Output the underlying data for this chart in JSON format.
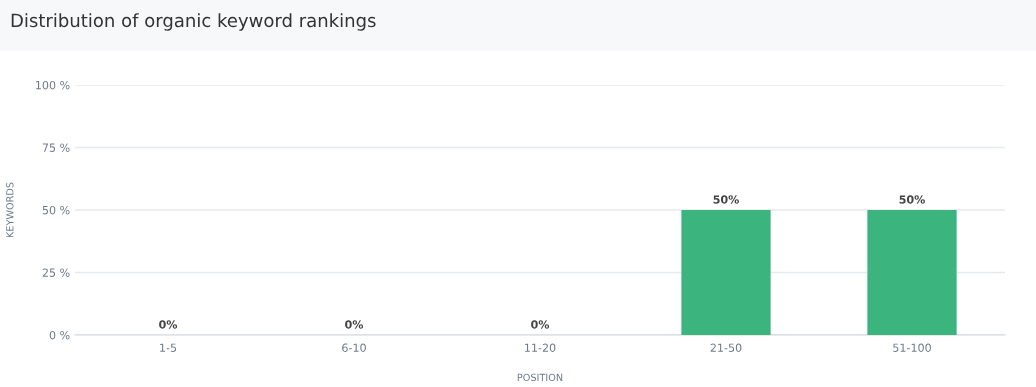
{
  "chart_data": {
    "type": "bar",
    "title": "Distribution of organic keyword rankings",
    "xlabel": "POSITION",
    "ylabel": "KEYWORDS",
    "categories": [
      "1-5",
      "6-10",
      "11-20",
      "21-50",
      "51-100"
    ],
    "values": [
      0,
      0,
      0,
      50,
      50
    ],
    "value_labels": [
      "0%",
      "0%",
      "0%",
      "50%",
      "50%"
    ],
    "color": "#3bb47e",
    "ylim": [
      0,
      100
    ],
    "yticks": [
      {
        "value": 0,
        "label": "0 %"
      },
      {
        "value": 25,
        "label": "25 %"
      },
      {
        "value": 50,
        "label": "50 %"
      },
      {
        "value": 75,
        "label": "75 %"
      },
      {
        "value": 100,
        "label": "100 %"
      }
    ],
    "grid": "y",
    "legend": false
  }
}
